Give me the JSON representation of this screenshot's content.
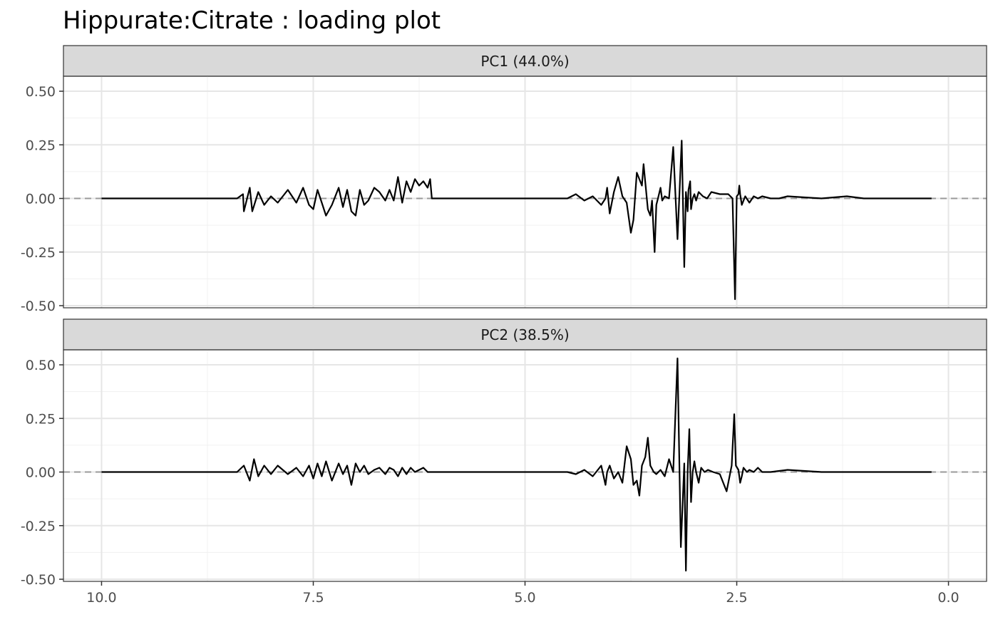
{
  "chart_data": {
    "type": "line",
    "title": "Hippurate:Citrate : loading plot",
    "xlabel": "",
    "ylabel": "",
    "xlim": [
      10.0,
      0.0
    ],
    "x_reversed": true,
    "ylim": [
      -0.5,
      0.55
    ],
    "x_ticks": [
      "10.0",
      "7.5",
      "5.0",
      "2.5",
      "0.0"
    ],
    "y_ticks": [
      "-0.50",
      "-0.25",
      "0.00",
      "0.25",
      "0.50"
    ],
    "reference_line": {
      "y": 0,
      "style": "dashed",
      "color": "#999999"
    },
    "grid": true,
    "line_color": "#000000",
    "panels": [
      {
        "label": "PC1 (44.0%)",
        "x": [
          10.0,
          9.0,
          8.4,
          8.33,
          8.32,
          8.25,
          8.22,
          8.15,
          8.08,
          8.0,
          7.92,
          7.8,
          7.7,
          7.62,
          7.55,
          7.5,
          7.45,
          7.4,
          7.35,
          7.28,
          7.2,
          7.15,
          7.1,
          7.05,
          7.0,
          6.95,
          6.9,
          6.85,
          6.78,
          6.72,
          6.65,
          6.6,
          6.55,
          6.5,
          6.45,
          6.4,
          6.35,
          6.3,
          6.25,
          6.2,
          6.15,
          6.12,
          6.1,
          6.05,
          6.03,
          6.0,
          5.0,
          4.5,
          4.4,
          4.3,
          4.2,
          4.1,
          4.05,
          4.03,
          4.0,
          3.95,
          3.9,
          3.85,
          3.8,
          3.75,
          3.72,
          3.68,
          3.62,
          3.6,
          3.55,
          3.52,
          3.5,
          3.47,
          3.45,
          3.43,
          3.4,
          3.38,
          3.35,
          3.3,
          3.25,
          3.2,
          3.15,
          3.12,
          3.1,
          3.08,
          3.07,
          3.05,
          3.04,
          3.02,
          3.0,
          2.98,
          2.95,
          2.9,
          2.85,
          2.8,
          2.7,
          2.6,
          2.55,
          2.52,
          2.5,
          2.48,
          2.47,
          2.46,
          2.44,
          2.4,
          2.35,
          2.3,
          2.25,
          2.2,
          2.1,
          2.0,
          1.9,
          1.5,
          1.2,
          1.0,
          0.2
        ],
        "values": [
          0.0,
          0.0,
          0.0,
          0.02,
          -0.06,
          0.05,
          -0.06,
          0.03,
          -0.03,
          0.01,
          -0.02,
          0.04,
          -0.02,
          0.05,
          -0.03,
          -0.05,
          0.04,
          -0.02,
          -0.08,
          -0.03,
          0.05,
          -0.04,
          0.04,
          -0.06,
          -0.08,
          0.04,
          -0.03,
          -0.01,
          0.05,
          0.03,
          -0.01,
          0.04,
          -0.01,
          0.1,
          -0.02,
          0.08,
          0.03,
          0.09,
          0.06,
          0.08,
          0.05,
          0.09,
          0.0,
          0.0,
          0.0,
          0.0,
          0.0,
          0.0,
          0.02,
          -0.01,
          0.01,
          -0.03,
          0.0,
          0.05,
          -0.07,
          0.03,
          0.1,
          0.01,
          -0.02,
          -0.16,
          -0.1,
          0.12,
          0.06,
          0.16,
          -0.05,
          -0.08,
          -0.01,
          -0.25,
          -0.03,
          0.0,
          0.05,
          -0.01,
          0.01,
          0.0,
          0.24,
          -0.19,
          0.27,
          -0.32,
          0.03,
          -0.06,
          0.04,
          0.08,
          -0.05,
          0.0,
          0.02,
          -0.01,
          0.03,
          0.01,
          0.0,
          0.03,
          0.02,
          0.02,
          0.0,
          -0.47,
          0.01,
          0.02,
          0.06,
          0.02,
          -0.03,
          0.01,
          -0.02,
          0.01,
          0.0,
          0.01,
          0.0,
          0.0,
          0.01,
          0.0,
          0.01,
          0.0,
          0.0
        ]
      },
      {
        "label": "PC2 (38.5%)",
        "x": [
          10.0,
          9.0,
          8.4,
          8.32,
          8.25,
          8.2,
          8.15,
          8.08,
          8.0,
          7.92,
          7.8,
          7.7,
          7.62,
          7.55,
          7.5,
          7.45,
          7.4,
          7.35,
          7.28,
          7.2,
          7.15,
          7.1,
          7.05,
          7.0,
          6.95,
          6.9,
          6.85,
          6.78,
          6.72,
          6.65,
          6.6,
          6.55,
          6.5,
          6.45,
          6.4,
          6.35,
          6.3,
          6.25,
          6.2,
          6.15,
          6.1,
          6.05,
          6.0,
          5.0,
          4.5,
          4.4,
          4.3,
          4.2,
          4.1,
          4.05,
          4.03,
          4.0,
          3.95,
          3.9,
          3.85,
          3.8,
          3.75,
          3.72,
          3.68,
          3.65,
          3.62,
          3.58,
          3.55,
          3.52,
          3.48,
          3.45,
          3.4,
          3.35,
          3.3,
          3.25,
          3.2,
          3.16,
          3.12,
          3.1,
          3.08,
          3.06,
          3.04,
          3.02,
          3.0,
          2.98,
          2.95,
          2.92,
          2.88,
          2.84,
          2.78,
          2.7,
          2.62,
          2.56,
          2.53,
          2.51,
          2.48,
          2.46,
          2.44,
          2.42,
          2.38,
          2.35,
          2.3,
          2.25,
          2.2,
          2.1,
          1.9,
          1.5,
          1.2,
          1.0,
          0.2
        ],
        "values": [
          0.0,
          0.0,
          0.0,
          0.03,
          -0.04,
          0.06,
          -0.02,
          0.03,
          -0.01,
          0.03,
          -0.01,
          0.02,
          -0.02,
          0.03,
          -0.03,
          0.04,
          -0.02,
          0.05,
          -0.04,
          0.04,
          -0.01,
          0.03,
          -0.06,
          0.04,
          0.0,
          0.03,
          -0.01,
          0.01,
          0.02,
          -0.01,
          0.02,
          0.01,
          -0.02,
          0.02,
          -0.01,
          0.02,
          0.0,
          0.01,
          0.02,
          0.0,
          0.0,
          0.0,
          0.0,
          0.0,
          0.0,
          -0.01,
          0.01,
          -0.02,
          0.03,
          -0.06,
          0.0,
          0.03,
          -0.03,
          0.0,
          -0.05,
          0.12,
          0.06,
          -0.06,
          -0.04,
          -0.11,
          0.03,
          0.07,
          0.16,
          0.03,
          0.0,
          -0.01,
          0.01,
          -0.02,
          0.06,
          0.0,
          0.53,
          -0.35,
          0.04,
          -0.46,
          0.0,
          0.2,
          -0.14,
          0.0,
          0.05,
          0.0,
          -0.05,
          0.02,
          0.0,
          0.01,
          0.0,
          -0.01,
          -0.09,
          0.03,
          0.27,
          0.03,
          0.01,
          -0.05,
          -0.02,
          0.02,
          0.0,
          0.01,
          0.0,
          0.02,
          0.0,
          0.0,
          0.01,
          0.0,
          0.0,
          0.0,
          0.0
        ]
      }
    ]
  }
}
